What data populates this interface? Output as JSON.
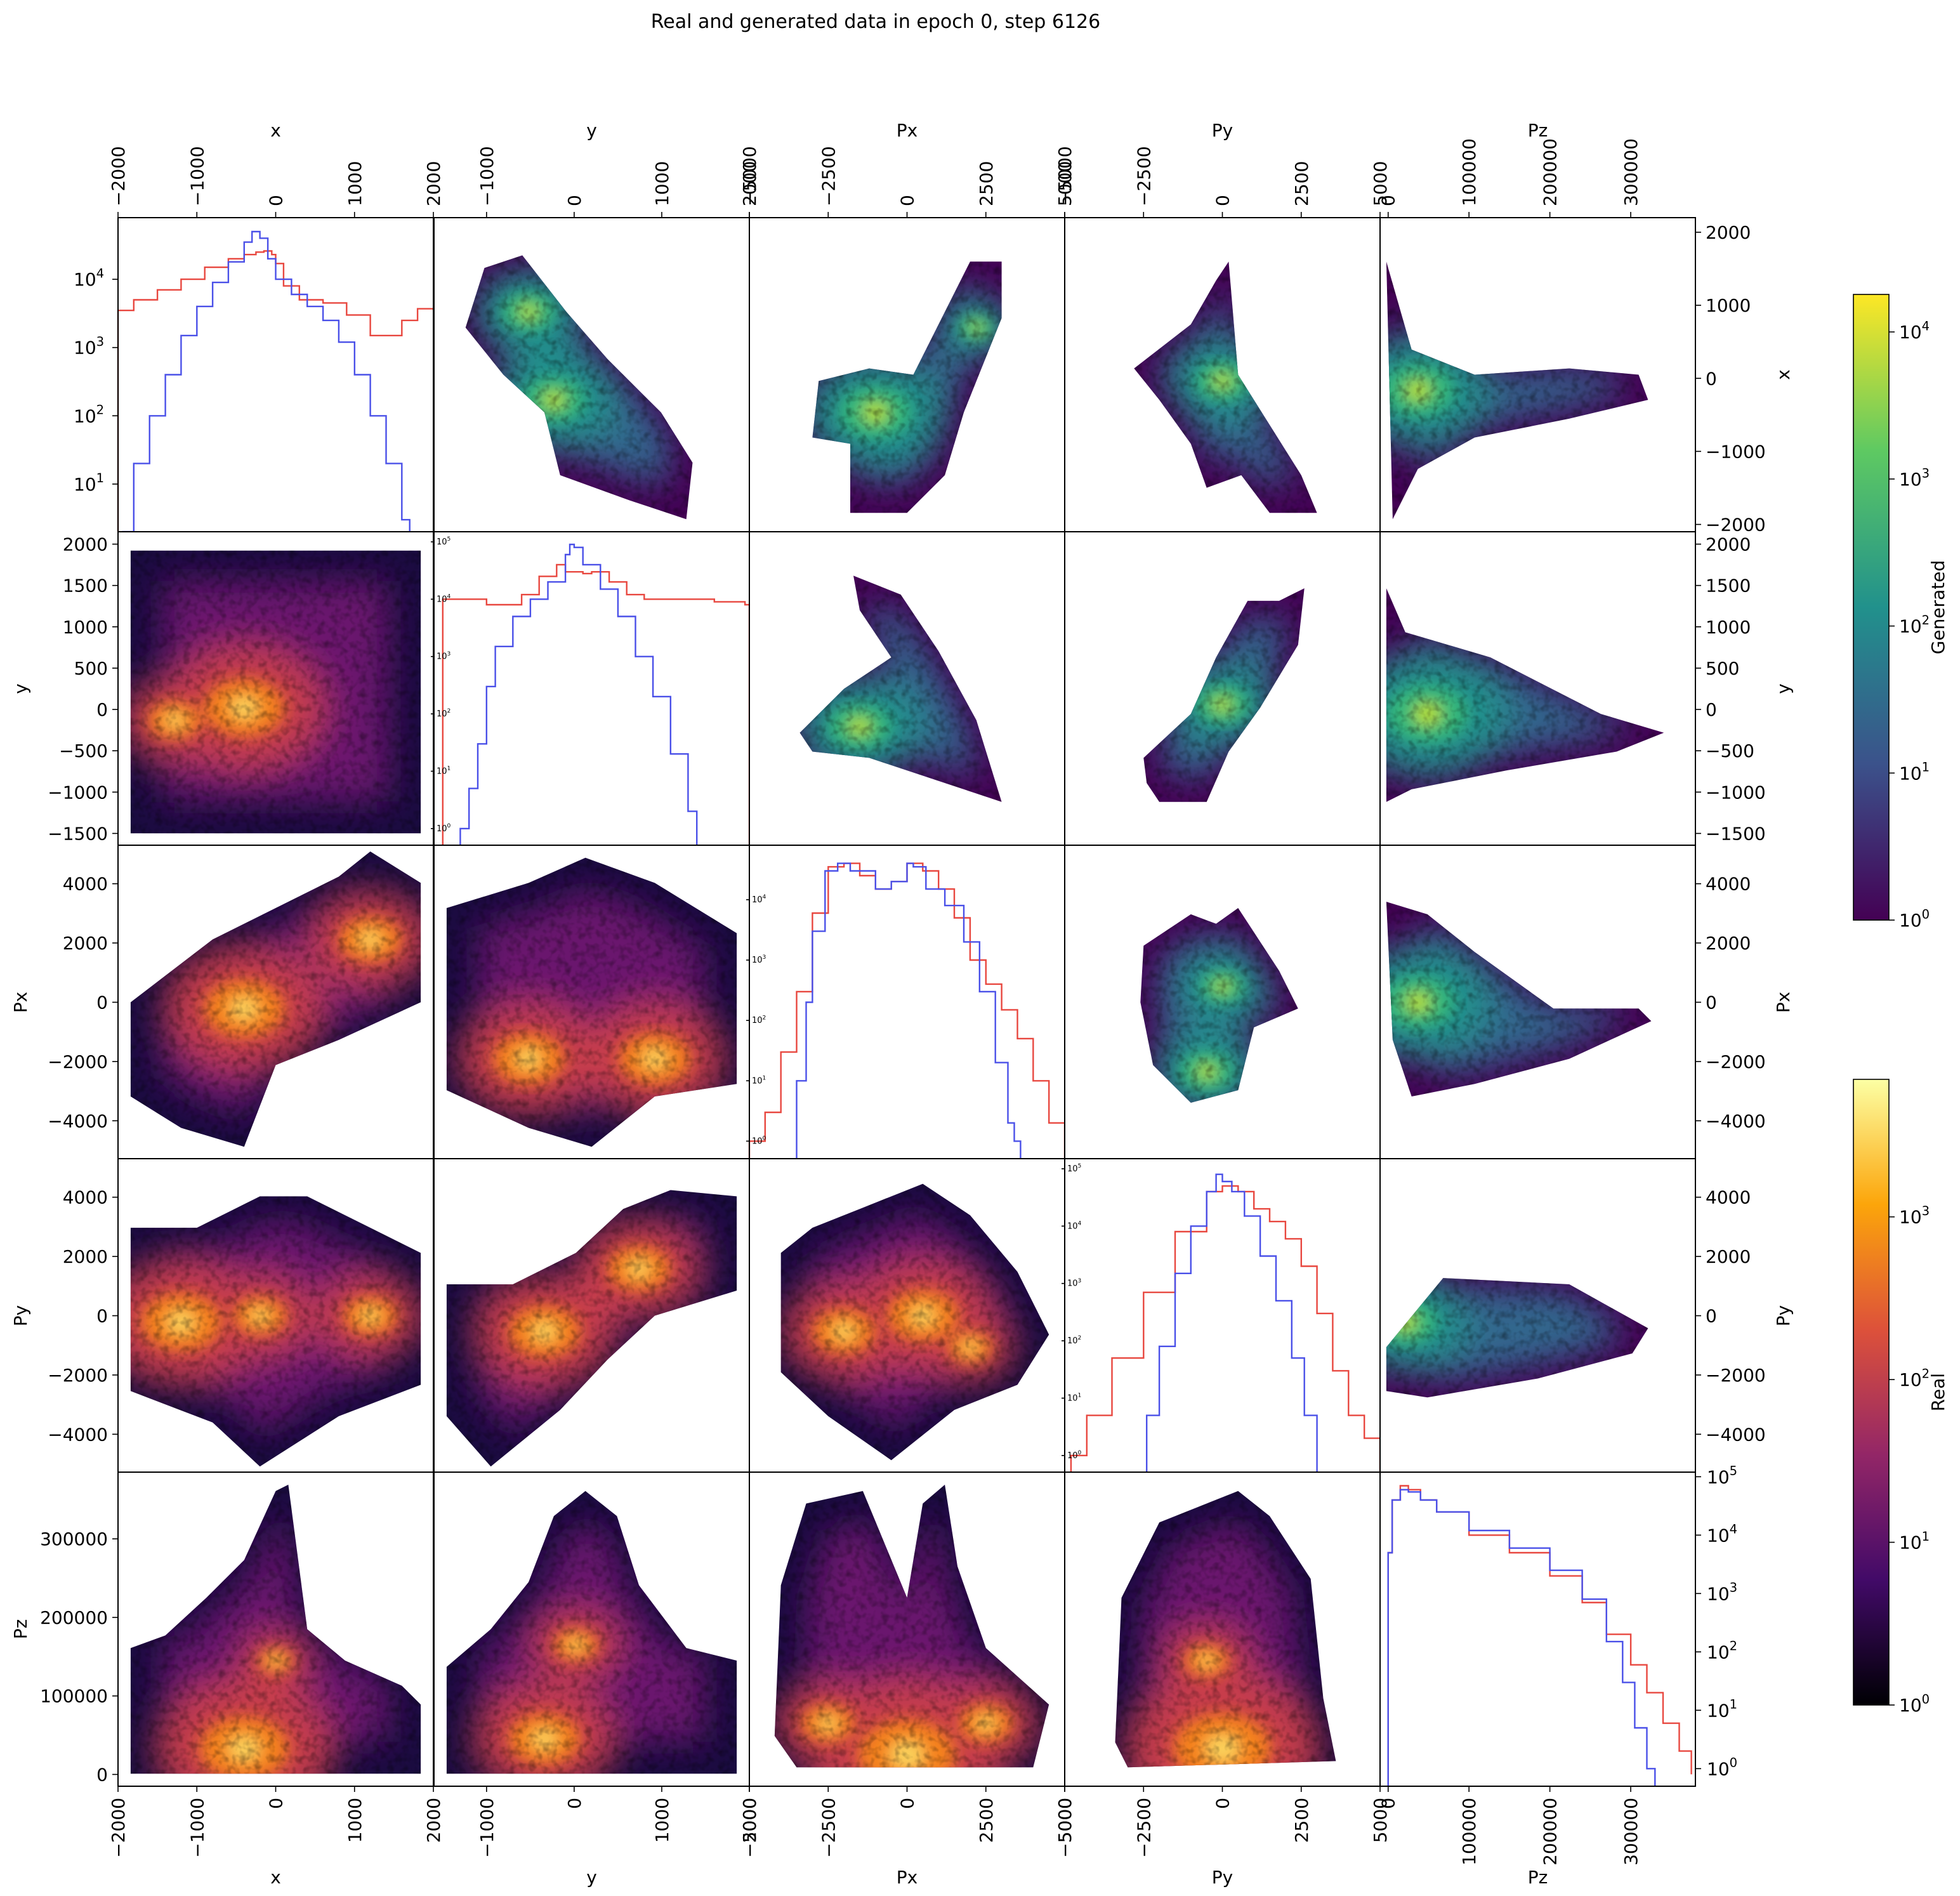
{
  "figure": {
    "title": "Real and generated data in epoch 0, step 6126"
  },
  "chart_data": {
    "type": "heatmap",
    "title": "Real and generated data in epoch 0, step 6126",
    "variables": [
      "x",
      "y",
      "Px",
      "Py",
      "Pz"
    ],
    "layout_note": "Corner plot: diagonal = 1D histograms (log count) of real (red) and generated (blue); upper triangle = 2D histogram of generated data (viridis); lower triangle = 2D histogram of real data (inferno).",
    "axes": {
      "x": {
        "label": "x",
        "range": [
          -2000,
          2000
        ],
        "ticks": [
          -2000,
          -1000,
          0,
          1000,
          2000
        ],
        "tick_labels": [
          "−2000",
          "−1000",
          "0",
          "1000",
          "2000"
        ]
      },
      "y": {
        "label": "y",
        "range": [
          -1600,
          2000
        ],
        "ticks": [
          -1000,
          0,
          1000,
          2000
        ],
        "tick_labels": [
          "−1000",
          "0",
          "1000",
          "2000"
        ]
      },
      "Px": {
        "label": "Px",
        "range": [
          -5000,
          5000
        ],
        "ticks": [
          -5000,
          -2500,
          0,
          2500,
          5000
        ],
        "tick_labels": [
          "−5000",
          "−2500",
          "0",
          "2500",
          "5000"
        ]
      },
      "Py": {
        "label": "Py",
        "range": [
          -5000,
          5000
        ],
        "ticks": [
          -5000,
          -2500,
          0,
          2500,
          5000
        ],
        "tick_labels": [
          "−5000",
          "−2500",
          "0",
          "2500",
          "5000"
        ]
      },
      "Pz": {
        "label": "Pz",
        "range": [
          -10000,
          380000
        ],
        "ticks": [
          0,
          100000,
          200000,
          300000
        ],
        "tick_labels": [
          "0",
          "100000",
          "200000",
          "300000"
        ]
      }
    },
    "row_ticks": {
      "x": {
        "values": [
          -2000,
          -1000,
          0,
          1000,
          2000
        ],
        "labels": [
          "−2000",
          "−1000",
          "0",
          "1000",
          "2000"
        ],
        "range": [
          -2100,
          2200
        ]
      },
      "y": {
        "values": [
          -1500,
          -1000,
          -500,
          0,
          500,
          1000,
          1500,
          2000
        ],
        "labels": [
          "−1500",
          "−1000",
          "−500",
          "0",
          "500",
          "1000",
          "1500",
          "2000"
        ],
        "range": [
          -1650,
          2150
        ]
      },
      "Px": {
        "values": [
          -4000,
          -2000,
          0,
          2000,
          4000
        ],
        "labels": [
          "−4000",
          "−2000",
          "0",
          "2000",
          "4000"
        ],
        "range": [
          -5300,
          5300
        ]
      },
      "Py": {
        "values": [
          -4000,
          -2000,
          0,
          2000,
          4000
        ],
        "labels": [
          "−4000",
          "−2000",
          "0",
          "2000",
          "4000"
        ],
        "range": [
          -5300,
          5300
        ]
      },
      "Pz": {
        "values": [
          0,
          100000,
          200000,
          300000
        ],
        "labels": [
          "0",
          "100000",
          "200000",
          "300000"
        ],
        "range": [
          -15000,
          385000
        ]
      }
    },
    "diagonal_histograms": {
      "y_scale": "log",
      "series_colors": {
        "real": "#e8473f",
        "generated": "#4a50e8"
      },
      "x": {
        "ylim": [
          2,
          80000
        ],
        "y_ticks": [
          10,
          100,
          1000,
          10000
        ],
        "y_tick_labels": [
          "10",
          "10",
          "10",
          "10"
        ],
        "y_tick_exp": [
          "1",
          "2",
          "3",
          "4"
        ],
        "real": {
          "x": [
            -2000,
            -1800,
            -1500,
            -1200,
            -900,
            -600,
            -400,
            -250,
            -150,
            -50,
            0,
            100,
            300,
            600,
            900,
            1200,
            1400,
            1600,
            1800,
            2000
          ],
          "counts": [
            3500,
            5000,
            7000,
            10000,
            15000,
            20000,
            23000,
            25000,
            26000,
            23000,
            17000,
            8000,
            5000,
            4500,
            3000,
            1500,
            1500,
            2500,
            3700,
            3500
          ]
        },
        "generated": {
          "x": [
            -1950,
            -1800,
            -1600,
            -1400,
            -1200,
            -1000,
            -800,
            -600,
            -400,
            -300,
            -200,
            -100,
            0,
            200,
            400,
            600,
            800,
            1000,
            1200,
            1400,
            1600,
            1700
          ],
          "counts": [
            2,
            20,
            100,
            400,
            1500,
            4000,
            9000,
            18000,
            35000,
            50000,
            40000,
            20000,
            10000,
            6000,
            4000,
            2500,
            1200,
            400,
            100,
            20,
            3,
            2
          ]
        }
      },
      "y": {
        "ylim": [
          0.5,
          150000
        ],
        "y_ticks": [
          1,
          10,
          100,
          1000,
          10000,
          100000
        ],
        "y_tick_labels": [
          "10",
          "10",
          "10",
          "10",
          "10",
          "10"
        ],
        "y_tick_exp": [
          "0",
          "1",
          "2",
          "3",
          "4",
          "5"
        ],
        "real": {
          "x": [
            -1500,
            -1300,
            -1000,
            -800,
            -600,
            -400,
            -200,
            -100,
            0,
            100,
            200,
            400,
            600,
            800,
            1000,
            1200,
            1400,
            1600,
            1800,
            1950,
            2000
          ],
          "counts": [
            10000,
            10000,
            8000,
            8000,
            12000,
            25000,
            40000,
            30000,
            30000,
            28000,
            30000,
            20000,
            12000,
            10000,
            10000,
            10000,
            10000,
            9000,
            9000,
            8000,
            0.5
          ]
        },
        "generated": {
          "x": [
            -1500,
            -1300,
            -1200,
            -1100,
            -1000,
            -900,
            -700,
            -500,
            -300,
            -100,
            -50,
            0,
            100,
            300,
            500,
            700,
            900,
            1100,
            1300,
            1400
          ],
          "counts": [
            0.5,
            1,
            5,
            30,
            300,
            1500,
            5000,
            10000,
            20000,
            60000,
            90000,
            80000,
            40000,
            15000,
            5000,
            1000,
            200,
            20,
            2,
            0.5
          ]
        }
      },
      "Px": {
        "ylim": [
          0.5,
          80000
        ],
        "y_ticks": [
          1,
          10,
          100,
          1000,
          10000
        ],
        "y_tick_labels": [
          "10",
          "10",
          "10",
          "10",
          "10"
        ],
        "y_tick_exp": [
          "0",
          "1",
          "2",
          "3",
          "4"
        ],
        "real": {
          "x": [
            -5000,
            -4500,
            -4000,
            -3500,
            -3000,
            -2500,
            -2000,
            -1500,
            -1000,
            -500,
            0,
            500,
            1000,
            1500,
            2000,
            2500,
            3000,
            3500,
            4000,
            4500,
            5000
          ],
          "counts": [
            1,
            3,
            30,
            300,
            6000,
            35000,
            40000,
            25000,
            15000,
            20000,
            40000,
            30000,
            15000,
            5000,
            1000,
            400,
            150,
            50,
            10,
            2,
            0.5
          ]
        },
        "generated": {
          "x": [
            -3900,
            -3500,
            -3200,
            -3000,
            -2600,
            -2200,
            -1800,
            -1000,
            -500,
            0,
            200,
            600,
            1200,
            1800,
            2300,
            2800,
            3200,
            3400,
            3600
          ],
          "counts": [
            0.5,
            10,
            200,
            3000,
            30000,
            40000,
            30000,
            15000,
            20000,
            40000,
            35000,
            15000,
            8000,
            2000,
            300,
            20,
            2,
            1,
            0.5
          ]
        }
      },
      "Py": {
        "ylim": [
          0.5,
          150000
        ],
        "y_ticks": [
          1,
          10,
          100,
          1000,
          10000,
          100000
        ],
        "y_tick_labels": [
          "10",
          "10",
          "10",
          "10",
          "10",
          "10"
        ],
        "y_tick_exp": [
          "0",
          "1",
          "2",
          "3",
          "4",
          "5"
        ],
        "real": {
          "x": [
            -4800,
            -4300,
            -3500,
            -2500,
            -1500,
            -500,
            0,
            500,
            1000,
            1500,
            2000,
            2500,
            3000,
            3500,
            4000,
            4500,
            5000
          ],
          "counts": [
            1,
            5,
            50,
            700,
            8000,
            40000,
            50000,
            40000,
            20000,
            12000,
            6000,
            2000,
            300,
            30,
            5,
            2,
            0.5
          ]
        },
        "generated": {
          "x": [
            -2700,
            -2400,
            -2000,
            -1500,
            -1000,
            -500,
            -200,
            0,
            300,
            700,
            1200,
            1700,
            2200,
            2600,
            3000
          ],
          "counts": [
            0.5,
            5,
            80,
            1500,
            10000,
            40000,
            80000,
            60000,
            40000,
            15000,
            3000,
            500,
            50,
            5,
            0.5
          ]
        }
      },
      "Pz": {
        "ylim": [
          0.5,
          120000
        ],
        "y_ticks": [
          1,
          10,
          100,
          1000,
          10000,
          100000
        ],
        "y_tick_labels": [
          "10",
          "10",
          "10",
          "10",
          "10",
          "10"
        ],
        "y_tick_exp": [
          "0",
          "1",
          "2",
          "3",
          "4",
          "5"
        ],
        "real": {
          "x": [
            0,
            5000,
            15000,
            25000,
            40000,
            60000,
            100000,
            150000,
            200000,
            240000,
            270000,
            300000,
            320000,
            340000,
            360000,
            375000
          ],
          "counts": [
            5000,
            40000,
            70000,
            60000,
            40000,
            25000,
            10000,
            5000,
            2000,
            700,
            200,
            60,
            20,
            6,
            2,
            0.8
          ]
        },
        "generated": {
          "x": [
            0,
            5000,
            15000,
            25000,
            40000,
            60000,
            100000,
            150000,
            200000,
            240000,
            270000,
            290000,
            305000,
            320000,
            330000
          ],
          "counts": [
            5000,
            40000,
            60000,
            55000,
            40000,
            25000,
            12000,
            6000,
            2500,
            800,
            150,
            30,
            5,
            1,
            0.5
          ]
        }
      }
    },
    "colorbars": [
      {
        "label": "Generated",
        "colormap": "viridis",
        "scale": "log",
        "range": [
          1,
          18000
        ],
        "tick_labels": [
          "10",
          "10",
          "10",
          "10",
          "10"
        ],
        "tick_exp": [
          "0",
          "1",
          "2",
          "3",
          "4"
        ]
      },
      {
        "label": "Real",
        "colormap": "inferno",
        "scale": "log",
        "range": [
          1,
          7000
        ],
        "tick_labels": [
          "10",
          "10",
          "10",
          "10"
        ],
        "tick_exp": [
          "0",
          "1",
          "2",
          "3"
        ]
      }
    ],
    "colors": {
      "real_line": "#e8473f",
      "generated_line": "#4a50e8",
      "viridis": [
        "#440154",
        "#3b528b",
        "#21918c",
        "#5ec962",
        "#fde725"
      ],
      "inferno": [
        "#000004",
        "#420a68",
        "#932667",
        "#dd513a",
        "#fca50a",
        "#fcffa4"
      ]
    }
  }
}
